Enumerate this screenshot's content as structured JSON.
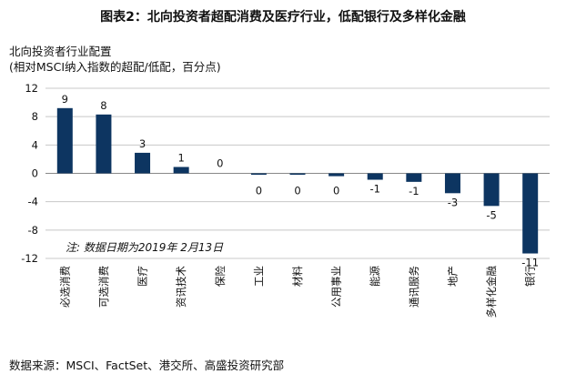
{
  "header": {
    "title": "图表2：北向投资者超配消费及医疗行业，低配银行及多样化金融"
  },
  "axis": {
    "ytitle_line1": "北向投资者行业配置",
    "ytitle_line2": "(相对MSCI纳入指数的超配/低配，百分点)"
  },
  "note": "注: 数据日期为2019年 2月13日",
  "footer": {
    "source": "数据来源：MSCI、FactSet、港交所、高盛投资研究部"
  },
  "colors": {
    "bar": "#0d3561"
  },
  "chart_data": {
    "type": "bar",
    "title": "图表2：北向投资者超配消费及医疗行业，低配银行及多样化金融",
    "ylabel": "北向投资者行业配置 (相对MSCI纳入指数的超配/低配，百分点)",
    "xlabel": "",
    "ylim": [
      -12,
      12
    ],
    "yticks": [
      12,
      8,
      4,
      0,
      -4,
      -8,
      -12
    ],
    "grid": true,
    "legend": "none",
    "categories": [
      "必选消费",
      "可选消费",
      "医疗",
      "资讯技术",
      "保险",
      "工业",
      "材料",
      "公用事业",
      "能源",
      "通讯服务",
      "地产",
      "多样化金融",
      "银行"
    ],
    "values": [
      9.2,
      8.3,
      2.9,
      0.9,
      0.0,
      -0.2,
      -0.2,
      -0.4,
      -0.9,
      -1.2,
      -2.8,
      -4.6,
      -11.3
    ],
    "data_labels": [
      "9",
      "8",
      "3",
      "1",
      "0",
      "0",
      "0",
      "0",
      "-1",
      "-1",
      "-3",
      "-5",
      "-11"
    ]
  }
}
